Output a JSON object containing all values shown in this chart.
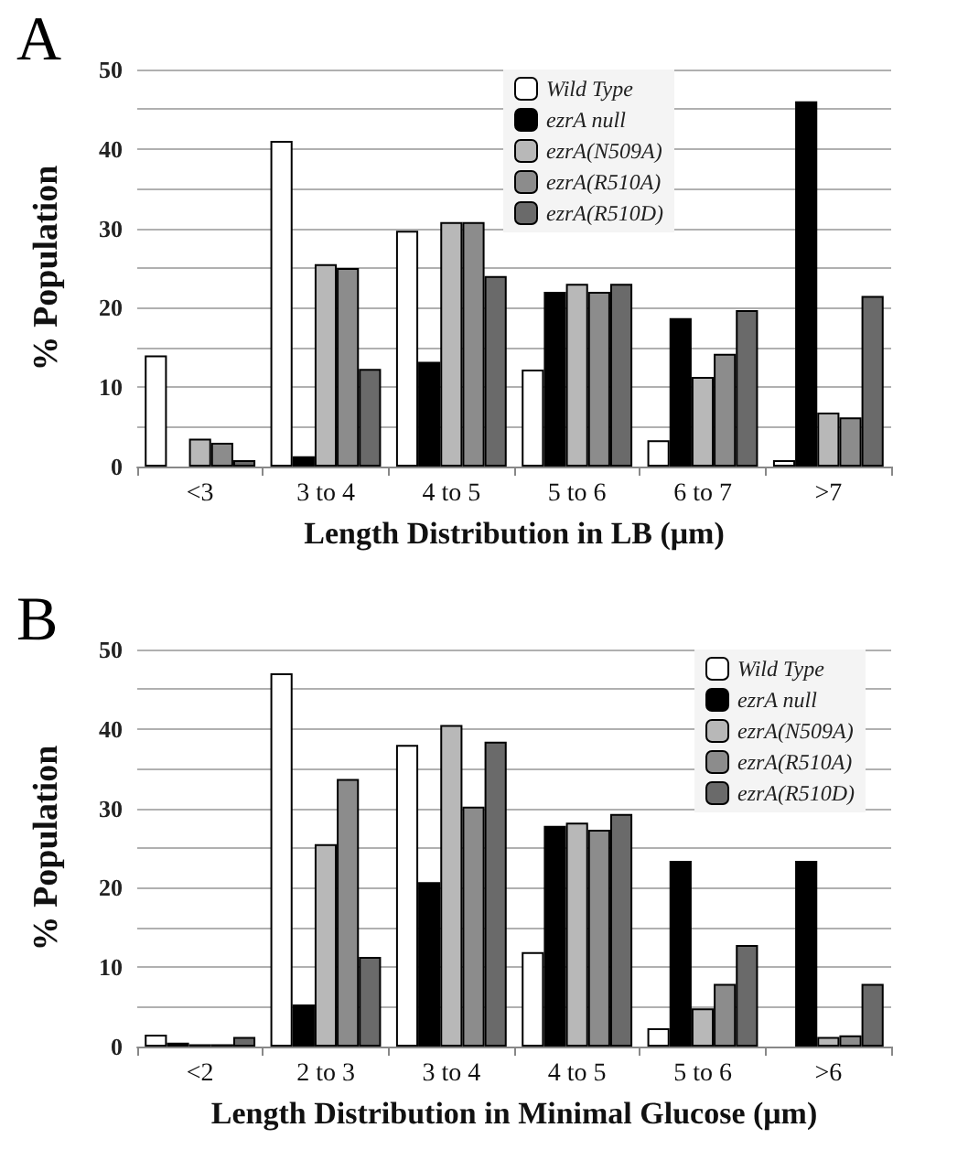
{
  "chart_data": [
    {
      "type": "bar",
      "title": "A",
      "xlabel": "Length Distribution in LB (μm)",
      "ylabel": "% Population",
      "categories": [
        "<3",
        "3 to 4",
        "4 to 5",
        "5 to 6",
        "6 to 7",
        ">7"
      ],
      "series": [
        {
          "name": "Wild Type",
          "color": "#ffffff",
          "values": [
            14,
            41,
            29.7,
            12.2,
            3.3,
            0.8
          ]
        },
        {
          "name": "ezrA null",
          "color": "#000000",
          "values": [
            null,
            1.3,
            13.2,
            22,
            18.7,
            46
          ]
        },
        {
          "name": "ezrA(N509A)",
          "color": "#b8b8b8",
          "values": [
            3.5,
            25.5,
            30.8,
            23,
            11.3,
            6.8
          ]
        },
        {
          "name": "ezrA(R510A)",
          "color": "#8c8c8c",
          "values": [
            3,
            25,
            30.8,
            22,
            14.2,
            6.2
          ]
        },
        {
          "name": "ezrA(R510D)",
          "color": "#6a6a6a",
          "values": [
            0.8,
            12.3,
            24,
            23,
            19.7,
            21.5
          ]
        }
      ],
      "ylim": [
        0,
        50
      ],
      "yticks": [
        0,
        {
          "value": 5,
          "label": null
        },
        10,
        {
          "value": 15,
          "label": null
        },
        20,
        {
          "value": 25,
          "label": null
        },
        30,
        {
          "value": 35,
          "label": null
        },
        40,
        {
          "value": 45,
          "label": null
        },
        50
      ],
      "grid": "y",
      "legend": "top"
    },
    {
      "type": "bar",
      "title": "B",
      "xlabel": "Length Distribution in Minimal Glucose (μm)",
      "ylabel": "% Population",
      "categories": [
        "<2",
        "2 to 3",
        "3 to 4",
        "4 to 5",
        "5 to 6",
        ">6"
      ],
      "series": [
        {
          "name": "Wild Type",
          "color": "#ffffff",
          "values": [
            1.5,
            47,
            38,
            11.9,
            2.3,
            null
          ]
        },
        {
          "name": "ezrA null",
          "color": "#000000",
          "values": [
            0.5,
            5.3,
            20.7,
            27.8,
            23.4,
            23.4
          ]
        },
        {
          "name": "ezrA(N509A)",
          "color": "#b8b8b8",
          "values": [
            0.3,
            25.5,
            40.5,
            28.2,
            4.8,
            1.2
          ]
        },
        {
          "name": "ezrA(R510A)",
          "color": "#8c8c8c",
          "values": [
            0.3,
            33.7,
            30.2,
            27.3,
            7.9,
            1.4
          ]
        },
        {
          "name": "ezrA(R510D)",
          "color": "#6a6a6a",
          "values": [
            1.2,
            11.3,
            38.4,
            29.3,
            12.8,
            7.9
          ]
        }
      ],
      "ylim": [
        0,
        50
      ],
      "yticks": [
        0,
        {
          "value": 5,
          "label": null
        },
        10,
        {
          "value": 15,
          "label": null
        },
        20,
        {
          "value": 25,
          "label": null
        },
        30,
        {
          "value": 35,
          "label": null
        },
        40,
        {
          "value": 45,
          "label": null
        },
        50
      ],
      "grid": "y",
      "legend": "top right"
    }
  ]
}
